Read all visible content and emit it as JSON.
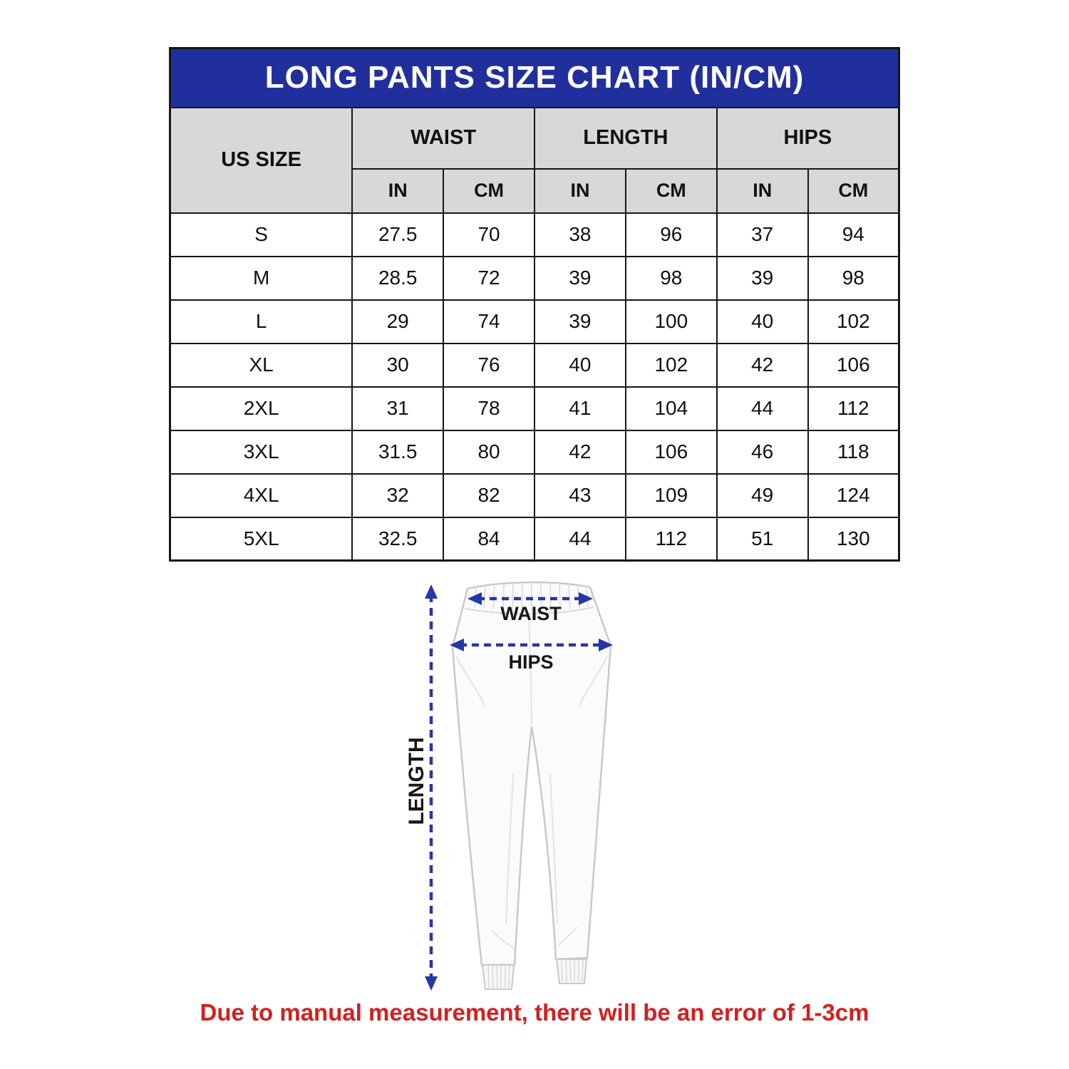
{
  "title": "LONG PANTS SIZE CHART (IN/CM)",
  "table": {
    "size_col_header": "US SIZE",
    "groups": [
      {
        "label": "WAIST"
      },
      {
        "label": "LENGTH"
      },
      {
        "label": "HIPS"
      }
    ],
    "unit_headers": [
      "IN",
      "CM",
      "IN",
      "CM",
      "IN",
      "CM"
    ],
    "rows": [
      {
        "size": "S",
        "values": [
          "27.5",
          "70",
          "38",
          "96",
          "37",
          "94"
        ]
      },
      {
        "size": "M",
        "values": [
          "28.5",
          "72",
          "39",
          "98",
          "39",
          "98"
        ]
      },
      {
        "size": "L",
        "values": [
          "29",
          "74",
          "39",
          "100",
          "40",
          "102"
        ]
      },
      {
        "size": "XL",
        "values": [
          "30",
          "76",
          "40",
          "102",
          "42",
          "106"
        ]
      },
      {
        "size": "2XL",
        "values": [
          "31",
          "78",
          "41",
          "104",
          "44",
          "112"
        ]
      },
      {
        "size": "3XL",
        "values": [
          "31.5",
          "80",
          "42",
          "106",
          "46",
          "118"
        ]
      },
      {
        "size": "4XL",
        "values": [
          "32",
          "82",
          "43",
          "109",
          "49",
          "124"
        ]
      },
      {
        "size": "5XL",
        "values": [
          "32.5",
          "84",
          "44",
          "112",
          "51",
          "130"
        ]
      }
    ]
  },
  "diagram": {
    "waist_label": "WAIST",
    "hips_label": "HIPS",
    "length_label": "LENGTH"
  },
  "footnote": "Due to manual measurement, there will be an error of 1-3cm",
  "colors": {
    "header_blue": "#212F9D",
    "header_gray": "#D8D8D8",
    "arrow_blue": "#2437A6",
    "footnote_red": "#D32020"
  }
}
